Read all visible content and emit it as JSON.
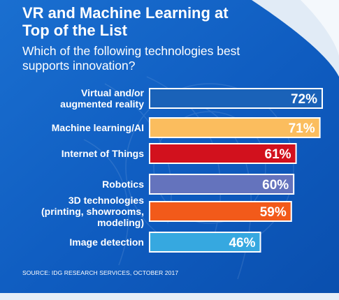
{
  "chart_data": {
    "type": "bar",
    "orientation": "horizontal",
    "title": "VR and Machine Learning at Top of the List",
    "subtitle": "Which of the following technologies best supports innovation?",
    "source": "SOURCE: IDG RESEARCH SERVICES, OCTOBER 2017",
    "categories": [
      [
        "Virtual and/or",
        "augmented reality"
      ],
      [
        "Machine learning/AI"
      ],
      [
        "Internet of Things"
      ],
      [
        "Robotics"
      ],
      [
        "3D technologies",
        "(printing, showrooms,",
        "modeling)"
      ],
      [
        "Image detection"
      ]
    ],
    "values": [
      72,
      71,
      61,
      60,
      59,
      46
    ],
    "value_labels": [
      "72%",
      "71%",
      "61%",
      "60%",
      "59%",
      "46%"
    ],
    "bar_colors": [
      "#1a62b8",
      "#fbbd5e",
      "#d2111d",
      "#6473bd",
      "#f25a1a",
      "#36a8e0"
    ],
    "label_colors": [
      "#ffffff",
      "#ffffff",
      "#ffffff",
      "#ffffff",
      "#ffffff",
      "#ffffff"
    ],
    "xlim": [
      0,
      72
    ],
    "background_colors": {
      "primary": "#1060c4",
      "light": "#dfe9f5"
    }
  }
}
